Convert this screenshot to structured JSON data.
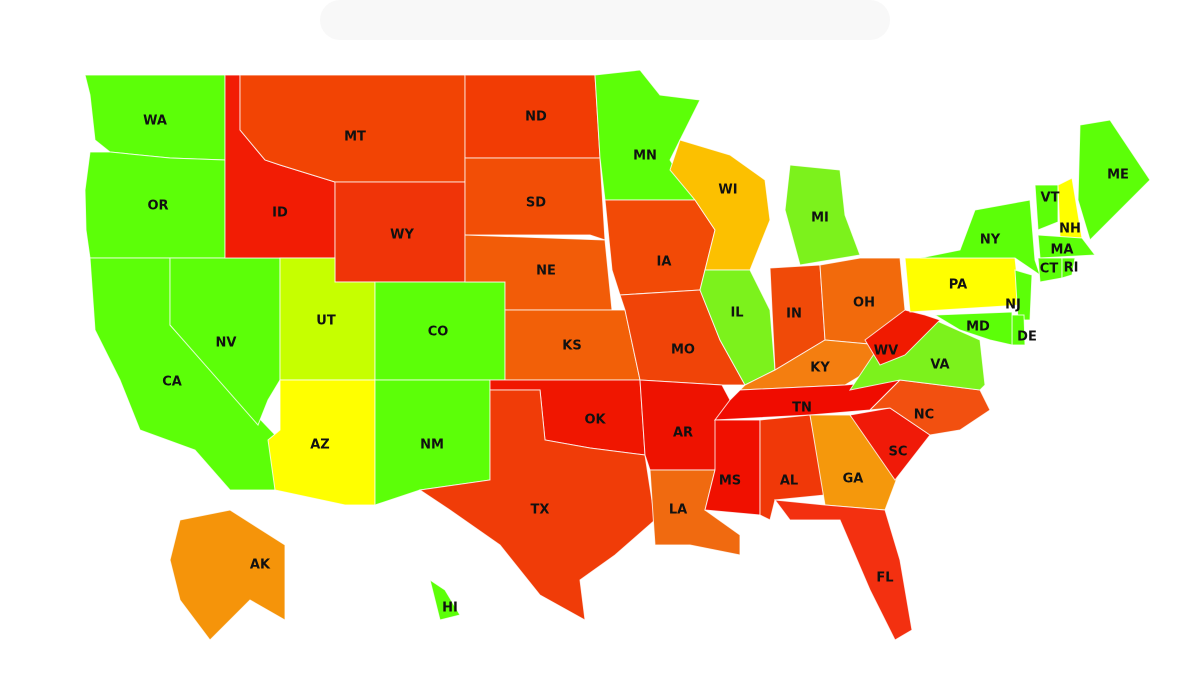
{
  "states": [
    {
      "label": "WA",
      "color": "#5cff08"
    },
    {
      "label": "OR",
      "color": "#5cff08"
    },
    {
      "label": "CA",
      "color": "#5cff08"
    },
    {
      "label": "NV",
      "color": "#5cff08"
    },
    {
      "label": "ID",
      "color": "#f21c04"
    },
    {
      "label": "MT",
      "color": "#f24404"
    },
    {
      "label": "WY",
      "color": "#f03408"
    },
    {
      "label": "UT",
      "color": "#c6ff00"
    },
    {
      "label": "CO",
      "color": "#5cff08"
    },
    {
      "label": "AZ",
      "color": "#ffff00"
    },
    {
      "label": "NM",
      "color": "#5cff08"
    },
    {
      "label": "ND",
      "color": "#f23c04"
    },
    {
      "label": "SD",
      "color": "#f24e06"
    },
    {
      "label": "NE",
      "color": "#f25c08"
    },
    {
      "label": "KS",
      "color": "#f26008"
    },
    {
      "label": "OK",
      "color": "#f01600"
    },
    {
      "label": "TX",
      "color": "#f03c08"
    },
    {
      "label": "MN",
      "color": "#5cff08"
    },
    {
      "label": "IA",
      "color": "#f24a06"
    },
    {
      "label": "MO",
      "color": "#f04408"
    },
    {
      "label": "AR",
      "color": "#ee1200"
    },
    {
      "label": "LA",
      "color": "#f06a10"
    },
    {
      "label": "WI",
      "color": "#fcc000"
    },
    {
      "label": "IL",
      "color": "#7cf21c"
    },
    {
      "label": "MI",
      "color": "#7cf21c"
    },
    {
      "label": "IN",
      "color": "#f04a08"
    },
    {
      "label": "OH",
      "color": "#f26a0c"
    },
    {
      "label": "KY",
      "color": "#f47e10"
    },
    {
      "label": "TN",
      "color": "#f00c00"
    },
    {
      "label": "MS",
      "color": "#f01000"
    },
    {
      "label": "AL",
      "color": "#f03808"
    },
    {
      "label": "GA",
      "color": "#f5980c"
    },
    {
      "label": "FL",
      "color": "#f33010"
    },
    {
      "label": "SC",
      "color": "#f01a08"
    },
    {
      "label": "NC",
      "color": "#f25010"
    },
    {
      "label": "VA",
      "color": "#7cf21c"
    },
    {
      "label": "WV",
      "color": "#f01a00"
    },
    {
      "label": "PA",
      "color": "#ffff00"
    },
    {
      "label": "NY",
      "color": "#5cff08"
    },
    {
      "label": "VT",
      "color": "#5cff08"
    },
    {
      "label": "NH",
      "color": "#ffff00"
    },
    {
      "label": "ME",
      "color": "#5cff08"
    },
    {
      "label": "MA",
      "color": "#5cff08"
    },
    {
      "label": "CT",
      "color": "#5cff08"
    },
    {
      "label": "RI",
      "color": "#5cff08"
    },
    {
      "label": "NJ",
      "color": "#5cff08"
    },
    {
      "label": "DE",
      "color": "#5cff08"
    },
    {
      "label": "MD",
      "color": "#5cff08"
    },
    {
      "label": "AK",
      "color": "#f5940a"
    },
    {
      "label": "HI",
      "color": "#5cff08"
    }
  ]
}
